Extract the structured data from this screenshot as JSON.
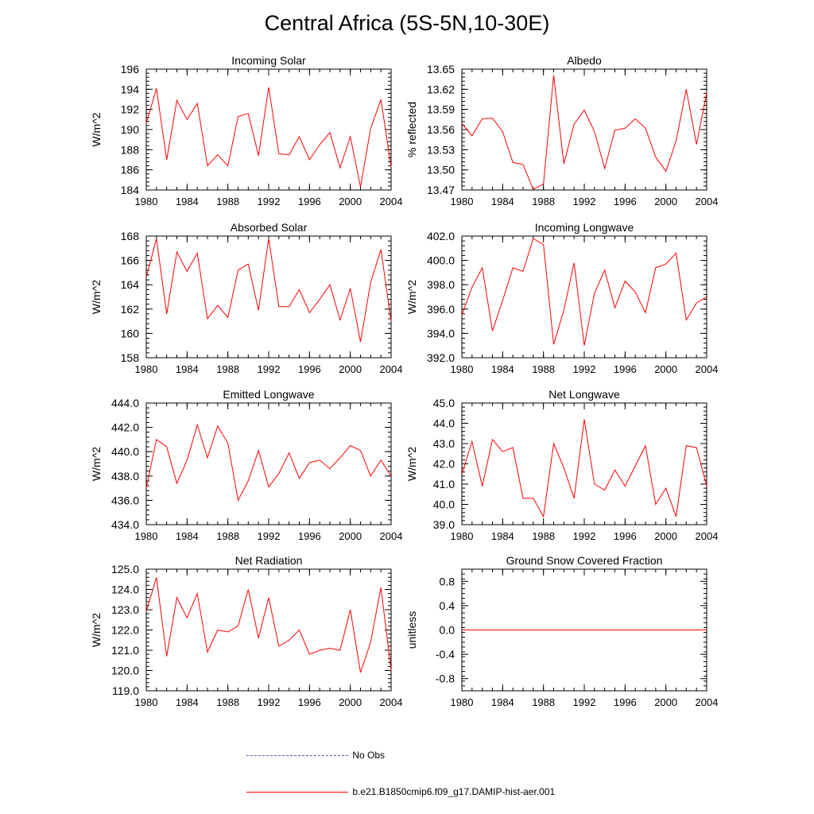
{
  "title": "Central Africa (5S-5N,10-30E)",
  "legend": [
    {
      "label": "No Obs",
      "color": "#4a5fd0",
      "style": "dashed"
    },
    {
      "label": "b.e21.B1850cmip6.f09_g17.DAMIP-hist-aer.001",
      "color": "#ff0000",
      "style": "solid"
    }
  ],
  "chart_data": [
    {
      "type": "line",
      "title": "Incoming Solar",
      "ylabel": "W/m^2",
      "xlim": [
        1980,
        2004
      ],
      "ylim": [
        184,
        196
      ],
      "xticks": [
        "1980",
        "1984",
        "1988",
        "1992",
        "1996",
        "2000",
        "2004"
      ],
      "yticks": [
        "184",
        "186",
        "188",
        "190",
        "192",
        "194",
        "196"
      ],
      "x": [
        1980,
        1981,
        1982,
        1983,
        1984,
        1985,
        1986,
        1987,
        1988,
        1989,
        1990,
        1991,
        1992,
        1993,
        1994,
        1995,
        1996,
        1997,
        1998,
        1999,
        2000,
        2001,
        2002,
        2003,
        2004
      ],
      "series": [
        {
          "values": [
            190.6,
            194.1,
            187.0,
            192.9,
            191.0,
            192.6,
            186.4,
            187.5,
            186.4,
            191.3,
            191.6,
            187.4,
            194.2,
            187.6,
            187.5,
            189.3,
            187.0,
            188.5,
            189.7,
            186.2,
            189.3,
            184.3,
            190.1,
            193.0,
            186.3
          ]
        }
      ]
    },
    {
      "type": "line",
      "title": "Albedo",
      "ylabel": "% reflected",
      "xlim": [
        1980,
        2004
      ],
      "ylim": [
        13.47,
        13.65
      ],
      "xticks": [
        "1980",
        "1984",
        "1988",
        "1992",
        "1996",
        "2000",
        "2004"
      ],
      "yticks": [
        "13.47",
        "13.50",
        "13.53",
        "13.56",
        "13.59",
        "13.62",
        "13.65"
      ],
      "x": [
        1980,
        1981,
        1982,
        1983,
        1984,
        1985,
        1986,
        1987,
        1988,
        1989,
        1990,
        1991,
        1992,
        1993,
        1994,
        1995,
        1996,
        1997,
        1998,
        1999,
        2000,
        2001,
        2002,
        2003,
        2004
      ],
      "series": [
        {
          "values": [
            13.569,
            13.551,
            13.576,
            13.577,
            13.557,
            13.511,
            13.508,
            13.471,
            13.479,
            13.641,
            13.509,
            13.568,
            13.589,
            13.557,
            13.502,
            13.559,
            13.562,
            13.576,
            13.562,
            13.519,
            13.498,
            13.543,
            13.62,
            13.538,
            13.615
          ]
        }
      ]
    },
    {
      "type": "line",
      "title": "Absorbed Solar",
      "ylabel": "W/m^2",
      "xlim": [
        1980,
        2004
      ],
      "ylim": [
        158,
        168
      ],
      "xticks": [
        "1980",
        "1984",
        "1988",
        "1992",
        "1996",
        "2000",
        "2004"
      ],
      "yticks": [
        "158",
        "160",
        "162",
        "164",
        "166",
        "168"
      ],
      "x": [
        1980,
        1981,
        1982,
        1983,
        1984,
        1985,
        1986,
        1987,
        1988,
        1989,
        1990,
        1991,
        1992,
        1993,
        1994,
        1995,
        1996,
        1997,
        1998,
        1999,
        2000,
        2001,
        2002,
        2003,
        2004
      ],
      "series": [
        {
          "values": [
            164.6,
            167.8,
            161.6,
            166.7,
            165.1,
            166.6,
            161.2,
            162.3,
            161.3,
            165.2,
            165.7,
            161.9,
            167.8,
            162.2,
            162.2,
            163.6,
            161.7,
            162.8,
            164.0,
            161.1,
            163.7,
            159.3,
            164.2,
            166.9,
            161.0
          ]
        }
      ]
    },
    {
      "type": "line",
      "title": "Incoming Longwave",
      "ylabel": "W/m^2",
      "xlim": [
        1980,
        2004
      ],
      "ylim": [
        392.0,
        402.0
      ],
      "xticks": [
        "1980",
        "1984",
        "1988",
        "1992",
        "1996",
        "2000",
        "2004"
      ],
      "yticks": [
        "392.0",
        "394.0",
        "396.0",
        "398.0",
        "400.0",
        "402.0"
      ],
      "x": [
        1980,
        1981,
        1982,
        1983,
        1984,
        1985,
        1986,
        1987,
        1988,
        1989,
        1990,
        1991,
        1992,
        1993,
        1994,
        1995,
        1996,
        1997,
        1998,
        1999,
        2000,
        2001,
        2002,
        2003,
        2004
      ],
      "series": [
        {
          "values": [
            395.5,
            397.8,
            399.4,
            394.2,
            396.7,
            399.4,
            399.1,
            401.8,
            401.3,
            393.1,
            395.9,
            399.8,
            393.0,
            397.3,
            399.2,
            396.1,
            398.3,
            397.4,
            395.7,
            399.4,
            399.7,
            400.6,
            395.1,
            396.5,
            397.0
          ]
        }
      ]
    },
    {
      "type": "line",
      "title": "Emitted Longwave",
      "ylabel": "W/m^2",
      "xlim": [
        1980,
        2004
      ],
      "ylim": [
        434.0,
        444.0
      ],
      "xticks": [
        "1980",
        "1984",
        "1988",
        "1992",
        "1996",
        "2000",
        "2004"
      ],
      "yticks": [
        "434.0",
        "436.0",
        "438.0",
        "440.0",
        "442.0",
        "444.0"
      ],
      "x": [
        1980,
        1981,
        1982,
        1983,
        1984,
        1985,
        1986,
        1987,
        1988,
        1989,
        1990,
        1991,
        1992,
        1993,
        1994,
        1995,
        1996,
        1997,
        1998,
        1999,
        2000,
        2001,
        2002,
        2003,
        2004
      ],
      "series": [
        {
          "values": [
            437.0,
            441.0,
            440.4,
            437.4,
            439.3,
            442.2,
            439.5,
            442.1,
            440.7,
            436.0,
            437.6,
            440.1,
            437.1,
            438.2,
            439.9,
            437.8,
            439.1,
            439.3,
            438.6,
            439.5,
            440.5,
            440.1,
            438.0,
            439.3,
            438.0
          ]
        }
      ]
    },
    {
      "type": "line",
      "title": "Net Longwave",
      "ylabel": "W/m^2",
      "xlim": [
        1980,
        2004
      ],
      "ylim": [
        39.0,
        45.0
      ],
      "xticks": [
        "1980",
        "1984",
        "1988",
        "1992",
        "1996",
        "2000",
        "2004"
      ],
      "yticks": [
        "39.0",
        "40.0",
        "41.0",
        "42.0",
        "43.0",
        "44.0",
        "45.0"
      ],
      "x": [
        1980,
        1981,
        1982,
        1983,
        1984,
        1985,
        1986,
        1987,
        1988,
        1989,
        1990,
        1991,
        1992,
        1993,
        1994,
        1995,
        1996,
        1997,
        1998,
        1999,
        2000,
        2001,
        2002,
        2003,
        2004
      ],
      "series": [
        {
          "values": [
            41.5,
            43.1,
            40.9,
            43.2,
            42.6,
            42.8,
            40.3,
            40.3,
            39.4,
            43.0,
            41.8,
            40.3,
            44.2,
            41.0,
            40.7,
            41.7,
            40.9,
            41.9,
            42.9,
            40.0,
            40.8,
            39.4,
            42.9,
            42.8,
            40.9
          ]
        }
      ]
    },
    {
      "type": "line",
      "title": "Net Radiation",
      "ylabel": "W/m^2",
      "xlim": [
        1980,
        2004
      ],
      "ylim": [
        119.0,
        125.0
      ],
      "xticks": [
        "1980",
        "1984",
        "1988",
        "1992",
        "1996",
        "2000",
        "2004"
      ],
      "yticks": [
        "119.0",
        "120.0",
        "121.0",
        "122.0",
        "123.0",
        "124.0",
        "125.0"
      ],
      "x": [
        1980,
        1981,
        1982,
        1983,
        1984,
        1985,
        1986,
        1987,
        1988,
        1989,
        1990,
        1991,
        1992,
        1993,
        1994,
        1995,
        1996,
        1997,
        1998,
        1999,
        2000,
        2001,
        2002,
        2003,
        2004
      ],
      "series": [
        {
          "values": [
            122.9,
            124.6,
            120.7,
            123.6,
            122.6,
            123.8,
            120.9,
            122.0,
            121.9,
            122.2,
            124.0,
            121.6,
            123.6,
            121.2,
            121.5,
            122.0,
            120.8,
            121.0,
            121.1,
            121.0,
            123.0,
            119.9,
            121.4,
            124.1,
            120.0
          ]
        }
      ]
    },
    {
      "type": "line",
      "title": "Ground Snow Covered Fraction",
      "ylabel": "unitless",
      "xlim": [
        1980,
        2004
      ],
      "ylim": [
        -1.0,
        1.0
      ],
      "xticks": [
        "1980",
        "1984",
        "1988",
        "1992",
        "1996",
        "2000",
        "2004"
      ],
      "yticks": [
        "-0.8",
        "-0.4",
        "0.0",
        "0.4",
        "0.8"
      ],
      "x": [
        1980,
        2004
      ],
      "series": [
        {
          "values": [
            0.0,
            0.0
          ]
        }
      ]
    }
  ]
}
